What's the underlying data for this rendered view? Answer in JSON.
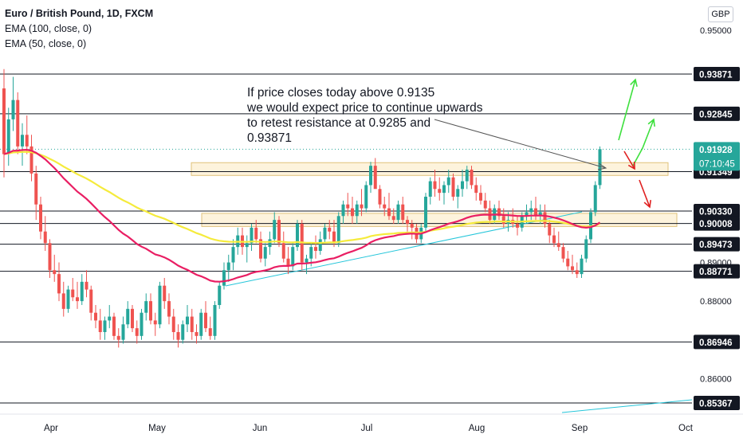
{
  "legend": {
    "title": "Euro / British Pound, 1D, FXCM",
    "ema100": "EMA (100, close, 0)",
    "ema50": "EMA (50, close, 0)"
  },
  "currency": "GBP",
  "note": {
    "lines": [
      "If price closes today above 0.9135",
      "we would expect price to continue upwards",
      "to retest resistance at 0.9285 and",
      "0.93871"
    ]
  },
  "colors": {
    "up": "#26a69a",
    "down": "#ef5350",
    "ema100": "#f5eb3c",
    "ema50": "#e91e63",
    "trendline": "#26c6da",
    "zone_fill": "#fdf3dc",
    "zone_stroke": "#e0c27a",
    "green_arrow": "#3ee03e",
    "red_arrow": "#e02020",
    "level_line": "#131722"
  },
  "chart_data": {
    "type": "candlestick",
    "title": "Euro / British Pound, 1D, FXCM",
    "y_axis_unit": "GBP",
    "ylim": [
      0.851,
      0.9545
    ],
    "x_tick_labels": [
      "Apr",
      "May",
      "Jun",
      "Jul",
      "Aug",
      "Sep",
      "Oct"
    ],
    "y_tick_labels": [
      "0.95000",
      "0.89000",
      "0.88000",
      "0.86000"
    ],
    "horizontal_levels": [
      0.93871,
      0.92845,
      0.91349,
      0.9033,
      0.90008,
      0.89473,
      0.88771,
      0.86946,
      0.85367
    ],
    "level_labels": [
      "0.93871",
      "0.92845",
      "0.91349",
      "0.90330",
      "0.90008",
      "0.89473",
      "0.88771",
      "0.86946",
      "0.85367"
    ],
    "last_price": {
      "value": 0.91928,
      "label": "0.91928",
      "countdown": "07:10:45"
    },
    "zones": [
      {
        "from": 0.9125,
        "to": 0.9158
      },
      {
        "from": 0.8993,
        "to": 0.9027
      }
    ],
    "ohlc": [
      [
        0.935,
        0.94,
        0.912,
        0.918
      ],
      [
        0.918,
        0.93,
        0.915,
        0.927
      ],
      [
        0.927,
        0.938,
        0.924,
        0.932
      ],
      [
        0.932,
        0.934,
        0.918,
        0.92
      ],
      [
        0.92,
        0.926,
        0.915,
        0.923
      ],
      [
        0.923,
        0.928,
        0.918,
        0.92
      ],
      [
        0.92,
        0.923,
        0.911,
        0.913
      ],
      [
        0.913,
        0.915,
        0.901,
        0.905
      ],
      [
        0.905,
        0.907,
        0.896,
        0.898
      ],
      [
        0.898,
        0.902,
        0.893,
        0.895
      ],
      [
        0.895,
        0.896,
        0.886,
        0.888
      ],
      [
        0.888,
        0.892,
        0.885,
        0.887
      ],
      [
        0.887,
        0.89,
        0.88,
        0.882
      ],
      [
        0.882,
        0.885,
        0.876,
        0.878
      ],
      [
        0.878,
        0.884,
        0.877,
        0.883
      ],
      [
        0.883,
        0.886,
        0.88,
        0.881
      ],
      [
        0.881,
        0.885,
        0.878,
        0.88
      ],
      [
        0.88,
        0.887,
        0.879,
        0.885
      ],
      [
        0.885,
        0.888,
        0.881,
        0.883
      ],
      [
        0.883,
        0.884,
        0.875,
        0.877
      ],
      [
        0.877,
        0.879,
        0.873,
        0.875
      ],
      [
        0.875,
        0.878,
        0.87,
        0.872
      ],
      [
        0.872,
        0.876,
        0.87,
        0.875
      ],
      [
        0.875,
        0.879,
        0.873,
        0.876
      ],
      [
        0.876,
        0.877,
        0.87,
        0.871
      ],
      [
        0.871,
        0.873,
        0.868,
        0.87
      ],
      [
        0.87,
        0.876,
        0.869,
        0.874
      ],
      [
        0.874,
        0.88,
        0.873,
        0.878
      ],
      [
        0.878,
        0.879,
        0.872,
        0.873
      ],
      [
        0.873,
        0.875,
        0.869,
        0.871
      ],
      [
        0.871,
        0.878,
        0.87,
        0.877
      ],
      [
        0.877,
        0.882,
        0.875,
        0.88
      ],
      [
        0.88,
        0.882,
        0.874,
        0.875
      ],
      [
        0.875,
        0.877,
        0.871,
        0.874
      ],
      [
        0.874,
        0.885,
        0.873,
        0.884
      ],
      [
        0.884,
        0.886,
        0.878,
        0.88
      ],
      [
        0.88,
        0.882,
        0.874,
        0.876
      ],
      [
        0.876,
        0.878,
        0.87,
        0.872
      ],
      [
        0.872,
        0.874,
        0.868,
        0.87
      ],
      [
        0.87,
        0.875,
        0.869,
        0.874
      ],
      [
        0.874,
        0.879,
        0.872,
        0.876
      ],
      [
        0.876,
        0.878,
        0.87,
        0.872
      ],
      [
        0.872,
        0.874,
        0.869,
        0.871
      ],
      [
        0.871,
        0.878,
        0.87,
        0.877
      ],
      [
        0.877,
        0.88,
        0.872,
        0.873
      ],
      [
        0.873,
        0.876,
        0.87,
        0.871
      ],
      [
        0.871,
        0.88,
        0.87,
        0.879
      ],
      [
        0.879,
        0.885,
        0.878,
        0.884
      ],
      [
        0.884,
        0.89,
        0.883,
        0.888
      ],
      [
        0.888,
        0.892,
        0.885,
        0.89
      ],
      [
        0.89,
        0.896,
        0.888,
        0.894
      ],
      [
        0.894,
        0.899,
        0.892,
        0.897
      ],
      [
        0.897,
        0.899,
        0.892,
        0.894
      ],
      [
        0.894,
        0.897,
        0.89,
        0.895
      ],
      [
        0.895,
        0.9,
        0.893,
        0.899
      ],
      [
        0.899,
        0.901,
        0.895,
        0.896
      ],
      [
        0.896,
        0.898,
        0.89,
        0.891
      ],
      [
        0.891,
        0.895,
        0.889,
        0.894
      ],
      [
        0.894,
        0.898,
        0.892,
        0.896
      ],
      [
        0.896,
        0.903,
        0.895,
        0.901
      ],
      [
        0.901,
        0.902,
        0.894,
        0.895
      ],
      [
        0.895,
        0.898,
        0.89,
        0.891
      ],
      [
        0.891,
        0.894,
        0.887,
        0.889
      ],
      [
        0.889,
        0.895,
        0.888,
        0.894
      ],
      [
        0.894,
        0.901,
        0.893,
        0.9
      ],
      [
        0.9,
        0.901,
        0.888,
        0.89
      ],
      [
        0.89,
        0.892,
        0.887,
        0.891
      ],
      [
        0.891,
        0.895,
        0.889,
        0.894
      ],
      [
        0.894,
        0.897,
        0.891,
        0.893
      ],
      [
        0.893,
        0.898,
        0.892,
        0.896
      ],
      [
        0.896,
        0.9,
        0.895,
        0.899
      ],
      [
        0.899,
        0.901,
        0.896,
        0.898
      ],
      [
        0.898,
        0.901,
        0.894,
        0.895
      ],
      [
        0.895,
        0.903,
        0.894,
        0.902
      ],
      [
        0.902,
        0.906,
        0.9,
        0.905
      ],
      [
        0.905,
        0.908,
        0.902,
        0.904
      ],
      [
        0.904,
        0.907,
        0.9,
        0.902
      ],
      [
        0.902,
        0.906,
        0.9,
        0.905
      ],
      [
        0.905,
        0.909,
        0.902,
        0.904
      ],
      [
        0.904,
        0.911,
        0.903,
        0.91
      ],
      [
        0.91,
        0.916,
        0.908,
        0.915
      ],
      [
        0.915,
        0.917,
        0.91,
        0.909
      ],
      [
        0.909,
        0.91,
        0.904,
        0.905
      ],
      [
        0.905,
        0.907,
        0.902,
        0.904
      ],
      [
        0.904,
        0.908,
        0.901,
        0.902
      ],
      [
        0.902,
        0.904,
        0.9,
        0.901
      ],
      [
        0.901,
        0.906,
        0.9,
        0.905
      ],
      [
        0.905,
        0.907,
        0.9,
        0.901
      ],
      [
        0.901,
        0.902,
        0.898,
        0.9
      ],
      [
        0.9,
        0.901,
        0.896,
        0.899
      ],
      [
        0.899,
        0.9,
        0.895,
        0.896
      ],
      [
        0.896,
        0.9,
        0.895,
        0.899
      ],
      [
        0.899,
        0.908,
        0.898,
        0.907
      ],
      [
        0.907,
        0.912,
        0.905,
        0.911
      ],
      [
        0.911,
        0.914,
        0.907,
        0.909
      ],
      [
        0.909,
        0.912,
        0.906,
        0.908
      ],
      [
        0.908,
        0.911,
        0.905,
        0.91
      ],
      [
        0.91,
        0.914,
        0.908,
        0.912
      ],
      [
        0.912,
        0.913,
        0.906,
        0.907
      ],
      [
        0.907,
        0.91,
        0.904,
        0.909
      ],
      [
        0.909,
        0.914,
        0.907,
        0.911
      ],
      [
        0.911,
        0.915,
        0.909,
        0.914
      ],
      [
        0.914,
        0.915,
        0.909,
        0.91
      ],
      [
        0.91,
        0.912,
        0.906,
        0.908
      ],
      [
        0.908,
        0.91,
        0.905,
        0.906
      ],
      [
        0.906,
        0.908,
        0.903,
        0.904
      ],
      [
        0.904,
        0.906,
        0.9,
        0.901
      ],
      [
        0.901,
        0.905,
        0.9,
        0.904
      ],
      [
        0.904,
        0.906,
        0.901,
        0.902
      ],
      [
        0.902,
        0.904,
        0.899,
        0.9
      ],
      [
        0.9,
        0.903,
        0.898,
        0.901
      ],
      [
        0.901,
        0.904,
        0.899,
        0.9
      ],
      [
        0.9,
        0.902,
        0.897,
        0.899
      ],
      [
        0.899,
        0.903,
        0.898,
        0.902
      ],
      [
        0.902,
        0.905,
        0.9,
        0.903
      ],
      [
        0.903,
        0.906,
        0.901,
        0.904
      ],
      [
        0.904,
        0.907,
        0.901,
        0.902
      ],
      [
        0.902,
        0.905,
        0.9,
        0.903
      ],
      [
        0.903,
        0.905,
        0.899,
        0.9
      ],
      [
        0.9,
        0.901,
        0.895,
        0.897
      ],
      [
        0.897,
        0.899,
        0.894,
        0.895
      ],
      [
        0.895,
        0.898,
        0.893,
        0.894
      ],
      [
        0.894,
        0.895,
        0.89,
        0.891
      ],
      [
        0.891,
        0.893,
        0.888,
        0.889
      ],
      [
        0.889,
        0.892,
        0.887,
        0.888
      ],
      [
        0.888,
        0.89,
        0.886,
        0.887
      ],
      [
        0.887,
        0.892,
        0.886,
        0.891
      ],
      [
        0.891,
        0.897,
        0.89,
        0.896
      ],
      [
        0.896,
        0.904,
        0.895,
        0.903
      ],
      [
        0.903,
        0.911,
        0.902,
        0.91
      ],
      [
        0.91,
        0.92,
        0.909,
        0.9193
      ]
    ]
  }
}
